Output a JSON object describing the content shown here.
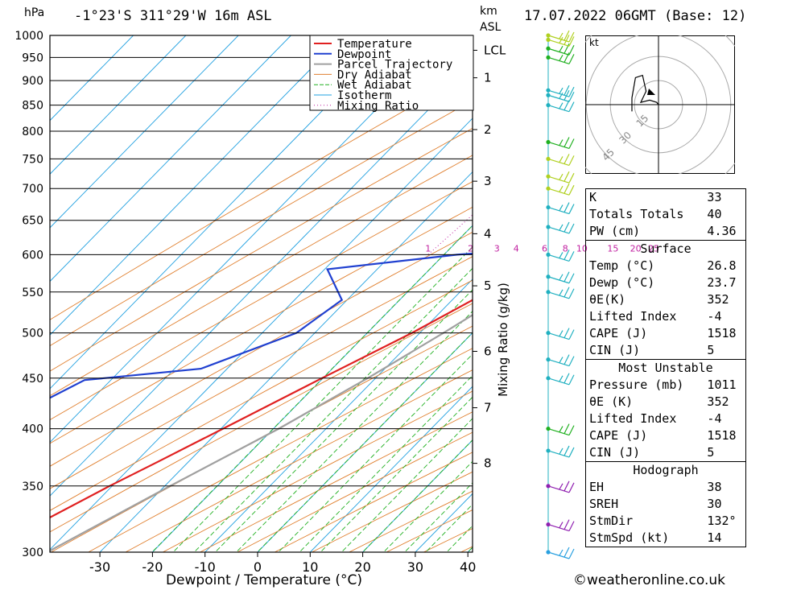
{
  "header": {
    "pressure_unit": "hPa",
    "location": "-1°23'S 311°29'W 16m ASL",
    "height_unit_1": "km",
    "height_unit_2": "ASL",
    "datetime": "17.07.2022 06GMT (Base: 12)"
  },
  "legend": [
    "Temperature",
    "Dewpoint",
    "Parcel Trajectory",
    "Dry Adiabat",
    "Wet Adiabat",
    "Isotherm",
    "Mixing Ratio"
  ],
  "colors": {
    "temperature": "#e02020",
    "dewpoint": "#2040d0",
    "parcel": "#a0a0a0",
    "dry_adiabat": "#e08030",
    "wet_adiabat": "#20b020",
    "isotherm": "#20a0e0",
    "mixing_ratio": "#c020a0"
  },
  "chart_data": {
    "type": "line",
    "title": "-1°23'S 311°29'W 16m ASL",
    "xlabel": "Dewpoint / Temperature (°C)",
    "ylabel": "hPa",
    "y2label": "Mixing Ratio (g/kg)",
    "xlim": [
      -40,
      40
    ],
    "ylim": [
      1000,
      300
    ],
    "x_ticks": [
      -30,
      -20,
      -10,
      0,
      10,
      20,
      30,
      40
    ],
    "pressure_levels": [
      300,
      350,
      400,
      450,
      500,
      550,
      600,
      650,
      700,
      750,
      800,
      850,
      900,
      950,
      1000
    ],
    "height_ticks_km": [
      {
        "label": "8",
        "p": 369
      },
      {
        "label": "7",
        "p": 420
      },
      {
        "label": "6",
        "p": 479
      },
      {
        "label": "5",
        "p": 558
      },
      {
        "label": "4",
        "p": 630
      },
      {
        "label": "3",
        "p": 712
      },
      {
        "label": "2",
        "p": 803
      },
      {
        "label": "1",
        "p": 906
      },
      {
        "label": "LCL",
        "p": 966
      }
    ],
    "mixing_ratio_labels": [
      "1",
      "2",
      "3",
      "4",
      "6",
      "8",
      "10",
      "15",
      "20",
      "25"
    ],
    "series": [
      {
        "name": "Temperature",
        "points": [
          [
            1005,
            27
          ],
          [
            990,
            26
          ],
          [
            960,
            25.6
          ],
          [
            930,
            24.2
          ],
          [
            900,
            22.3
          ],
          [
            850,
            18.6
          ],
          [
            800,
            14.7
          ],
          [
            760,
            12.5
          ],
          [
            700,
            9.9
          ],
          [
            650,
            6.4
          ],
          [
            620,
            3.2
          ],
          [
            600,
            0.6
          ],
          [
            550,
            -4.8
          ],
          [
            500,
            -11.5
          ],
          [
            450,
            -20.2
          ],
          [
            400,
            -29.6
          ],
          [
            370,
            -35.9
          ],
          [
            350,
            -40.5
          ],
          [
            320,
            -47.2
          ],
          [
            305,
            -52.0
          ]
        ]
      },
      {
        "name": "Dewpoint",
        "points": [
          [
            1005,
            23.7
          ],
          [
            990,
            23.2
          ],
          [
            970,
            22.9
          ],
          [
            950,
            20.5
          ],
          [
            900,
            17.0
          ],
          [
            850,
            14.5
          ],
          [
            800,
            7.9
          ],
          [
            790,
            6.8
          ],
          [
            760,
            10.0
          ],
          [
            720,
            7.4
          ],
          [
            700,
            5.1
          ],
          [
            660,
            4.5
          ],
          [
            650,
            -8.5
          ],
          [
            625,
            2.0
          ],
          [
            610,
            -0.5
          ],
          [
            600,
            -17.5
          ],
          [
            580,
            -39.5
          ],
          [
            540,
            -31.0
          ],
          [
            500,
            -33.5
          ],
          [
            460,
            -45.0
          ],
          [
            448,
            -65.0
          ],
          [
            400,
            -74.0
          ],
          [
            370,
            -90.0
          ],
          [
            350,
            -100.0
          ],
          [
            300,
            -120.0
          ]
        ]
      },
      {
        "name": "Parcel Trajectory",
        "points": [
          [
            1000,
            26.8
          ],
          [
            970,
            24.3
          ],
          [
            966,
            24.0
          ],
          [
            900,
            21.4
          ],
          [
            850,
            19.0
          ],
          [
            800,
            16.5
          ],
          [
            700,
            11.0
          ],
          [
            600,
            4.0
          ],
          [
            500,
            -5.5
          ],
          [
            450,
            -11.5
          ],
          [
            400,
            -19.0
          ],
          [
            350,
            -29.0
          ],
          [
            300,
            -40.0
          ]
        ]
      }
    ]
  },
  "hodograph": {
    "unit": "kt",
    "ring_labels": [
      "15",
      "30",
      "45"
    ],
    "points": [
      [
        0,
        0
      ],
      [
        -1,
        1
      ],
      [
        -5,
        2
      ],
      [
        -10,
        1
      ],
      [
        -7,
        6
      ],
      [
        -9,
        13
      ],
      [
        -13,
        12
      ],
      [
        -15,
        3
      ],
      [
        -15,
        -3
      ]
    ]
  },
  "wind_barbs": [
    {
      "p": 300,
      "color": "#2aa0e0"
    },
    {
      "p": 320,
      "color": "#9020b0"
    },
    {
      "p": 350,
      "color": "#9020b0"
    },
    {
      "p": 380,
      "color": "#20b0c0"
    },
    {
      "p": 400,
      "color": "#20b020"
    },
    {
      "p": 450,
      "color": "#20b0c0"
    },
    {
      "p": 470,
      "color": "#20b0c0"
    },
    {
      "p": 500,
      "color": "#20b0c0"
    },
    {
      "p": 550,
      "color": "#20b0c0"
    },
    {
      "p": 570,
      "color": "#20b0c0"
    },
    {
      "p": 600,
      "color": "#20b0c0"
    },
    {
      "p": 640,
      "color": "#20b0c0"
    },
    {
      "p": 670,
      "color": "#20b0c0"
    },
    {
      "p": 700,
      "color": "#b0d020"
    },
    {
      "p": 720,
      "color": "#b0d020"
    },
    {
      "p": 750,
      "color": "#b0d020"
    },
    {
      "p": 780,
      "color": "#20b020"
    },
    {
      "p": 850,
      "color": "#20b0c0"
    },
    {
      "p": 870,
      "color": "#20b0c0"
    },
    {
      "p": 880,
      "color": "#20b0c0"
    },
    {
      "p": 950,
      "color": "#20b020"
    },
    {
      "p": 970,
      "color": "#20b020"
    },
    {
      "p": 990,
      "color": "#b0d020"
    },
    {
      "p": 1000,
      "color": "#b0d020"
    }
  ],
  "indices": {
    "top": [
      {
        "k": "K",
        "v": "33"
      },
      {
        "k": "Totals Totals",
        "v": "40"
      },
      {
        "k": "PW (cm)",
        "v": "4.36"
      }
    ],
    "surface": {
      "title": "Surface",
      "rows": [
        {
          "k": "Temp (°C)",
          "v": "26.8"
        },
        {
          "k": "Dewp (°C)",
          "v": "23.7"
        },
        {
          "k": "θE(K)",
          "v": "352"
        },
        {
          "k": "Lifted Index",
          "v": "-4"
        },
        {
          "k": "CAPE (J)",
          "v": "1518"
        },
        {
          "k": "CIN (J)",
          "v": "5"
        }
      ]
    },
    "most_unstable": {
      "title": "Most Unstable",
      "rows": [
        {
          "k": "Pressure (mb)",
          "v": "1011"
        },
        {
          "k": "θE (K)",
          "v": "352"
        },
        {
          "k": "Lifted Index",
          "v": "-4"
        },
        {
          "k": "CAPE (J)",
          "v": "1518"
        },
        {
          "k": "CIN (J)",
          "v": "5"
        }
      ]
    },
    "hodograph": {
      "title": "Hodograph",
      "rows": [
        {
          "k": "EH",
          "v": "38"
        },
        {
          "k": "SREH",
          "v": "30"
        },
        {
          "k": "StmDir",
          "v": "132°"
        },
        {
          "k": "StmSpd (kt)",
          "v": "14"
        }
      ]
    }
  },
  "copyright": "©weatheronline.co.uk"
}
